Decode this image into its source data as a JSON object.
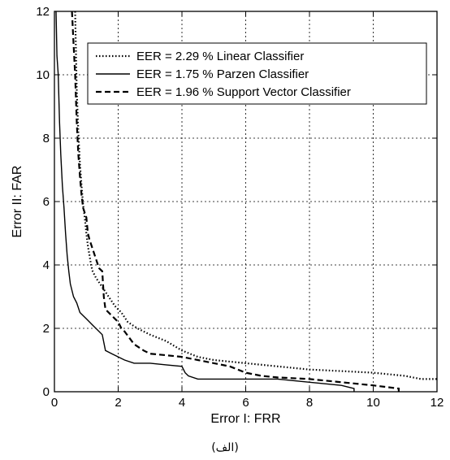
{
  "chart_data": {
    "type": "line",
    "title": "",
    "xlabel": "Error I: FRR",
    "ylabel": "Error II: FAR",
    "xlim": [
      0,
      12
    ],
    "ylim": [
      0,
      12
    ],
    "xticks": [
      0,
      2,
      4,
      6,
      8,
      10,
      12
    ],
    "yticks": [
      0,
      2,
      4,
      6,
      8,
      10,
      12
    ],
    "grid": true,
    "legend_position": "top-right",
    "caption": "(الف)",
    "series": [
      {
        "name": "EER = 2.29  %  Linear Classifier",
        "style": "dotted",
        "points": [
          [
            0.65,
            12.0
          ],
          [
            0.7,
            9.5
          ],
          [
            0.75,
            8.2
          ],
          [
            0.8,
            7.2
          ],
          [
            0.85,
            6.5
          ],
          [
            0.9,
            5.9
          ],
          [
            0.95,
            5.5
          ],
          [
            1.0,
            5.0
          ],
          [
            1.05,
            4.6
          ],
          [
            1.1,
            4.3
          ],
          [
            1.15,
            4.0
          ],
          [
            1.2,
            3.8
          ],
          [
            1.3,
            3.6
          ],
          [
            1.5,
            3.3
          ],
          [
            1.7,
            3.0
          ],
          [
            1.9,
            2.7
          ],
          [
            2.1,
            2.5
          ],
          [
            2.3,
            2.2
          ],
          [
            2.6,
            2.0
          ],
          [
            3.0,
            1.8
          ],
          [
            3.5,
            1.6
          ],
          [
            4.0,
            1.3
          ],
          [
            4.5,
            1.1
          ],
          [
            5.0,
            1.0
          ],
          [
            6.0,
            0.9
          ],
          [
            7.0,
            0.8
          ],
          [
            8.0,
            0.7
          ],
          [
            9.0,
            0.65
          ],
          [
            10.0,
            0.6
          ],
          [
            11.0,
            0.5
          ],
          [
            11.5,
            0.4
          ],
          [
            12.0,
            0.4
          ]
        ]
      },
      {
        "name": "EER = 1.75  %  Parzen Classifier",
        "style": "solid",
        "points": [
          [
            0.05,
            12.0
          ],
          [
            0.08,
            10.6
          ],
          [
            0.12,
            10.0
          ],
          [
            0.16,
            8.5
          ],
          [
            0.2,
            7.5
          ],
          [
            0.25,
            6.5
          ],
          [
            0.3,
            5.8
          ],
          [
            0.35,
            5.0
          ],
          [
            0.4,
            4.3
          ],
          [
            0.45,
            3.8
          ],
          [
            0.5,
            3.4
          ],
          [
            0.6,
            3.0
          ],
          [
            0.7,
            2.8
          ],
          [
            0.8,
            2.5
          ],
          [
            1.0,
            2.3
          ],
          [
            1.2,
            2.1
          ],
          [
            1.5,
            1.8
          ],
          [
            1.6,
            1.3
          ],
          [
            1.8,
            1.2
          ],
          [
            2.0,
            1.1
          ],
          [
            2.2,
            1.0
          ],
          [
            2.5,
            0.9
          ],
          [
            3.0,
            0.9
          ],
          [
            3.5,
            0.85
          ],
          [
            4.0,
            0.8
          ],
          [
            4.1,
            0.6
          ],
          [
            4.2,
            0.5
          ],
          [
            4.5,
            0.4
          ],
          [
            5.0,
            0.4
          ],
          [
            6.0,
            0.4
          ],
          [
            7.0,
            0.4
          ],
          [
            8.0,
            0.3
          ],
          [
            9.0,
            0.2
          ],
          [
            9.4,
            0.1
          ],
          [
            9.4,
            0.0
          ]
        ]
      },
      {
        "name": "EER = 1.96  %  Support Vector Classifier",
        "style": "dashed",
        "points": [
          [
            0.55,
            12.0
          ],
          [
            0.6,
            11.0
          ],
          [
            0.65,
            10.0
          ],
          [
            0.7,
            8.5
          ],
          [
            0.75,
            7.5
          ],
          [
            0.8,
            6.8
          ],
          [
            0.85,
            6.2
          ],
          [
            0.9,
            5.8
          ],
          [
            1.0,
            5.5
          ],
          [
            1.05,
            5.0
          ],
          [
            1.1,
            4.8
          ],
          [
            1.2,
            4.5
          ],
          [
            1.3,
            4.2
          ],
          [
            1.4,
            3.9
          ],
          [
            1.5,
            3.8
          ],
          [
            1.55,
            3.0
          ],
          [
            1.6,
            2.6
          ],
          [
            1.8,
            2.4
          ],
          [
            2.0,
            2.2
          ],
          [
            2.1,
            2.0
          ],
          [
            2.2,
            1.9
          ],
          [
            2.5,
            1.5
          ],
          [
            2.8,
            1.3
          ],
          [
            3.0,
            1.2
          ],
          [
            3.5,
            1.15
          ],
          [
            4.0,
            1.1
          ],
          [
            4.5,
            1.0
          ],
          [
            5.0,
            0.9
          ],
          [
            5.5,
            0.8
          ],
          [
            6.0,
            0.6
          ],
          [
            6.5,
            0.5
          ],
          [
            7.0,
            0.45
          ],
          [
            8.0,
            0.4
          ],
          [
            9.0,
            0.3
          ],
          [
            10.0,
            0.2
          ],
          [
            10.8,
            0.1
          ],
          [
            10.8,
            0.0
          ]
        ]
      }
    ]
  }
}
